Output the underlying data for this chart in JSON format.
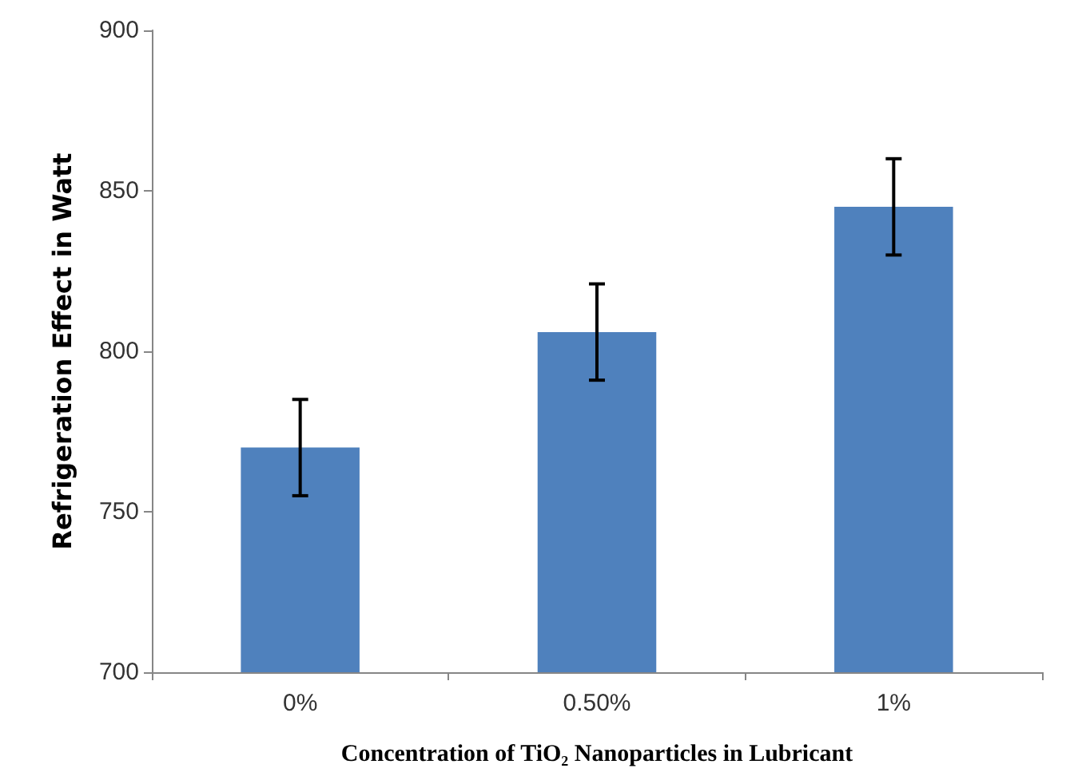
{
  "chart_data": {
    "type": "bar",
    "xlabel": "Concentration of TiO₂ Nanoparticles in Lubricant",
    "ylabel": "Refrigeration Effect in Watt",
    "categories": [
      "0%",
      "0.50%",
      "1%"
    ],
    "values": [
      770,
      806,
      845
    ],
    "errors": [
      15,
      15,
      15
    ],
    "color": "#4f81bd",
    "ylim": [
      700,
      900
    ],
    "yticks": [
      700,
      750,
      800,
      850,
      900
    ],
    "grid": false
  }
}
